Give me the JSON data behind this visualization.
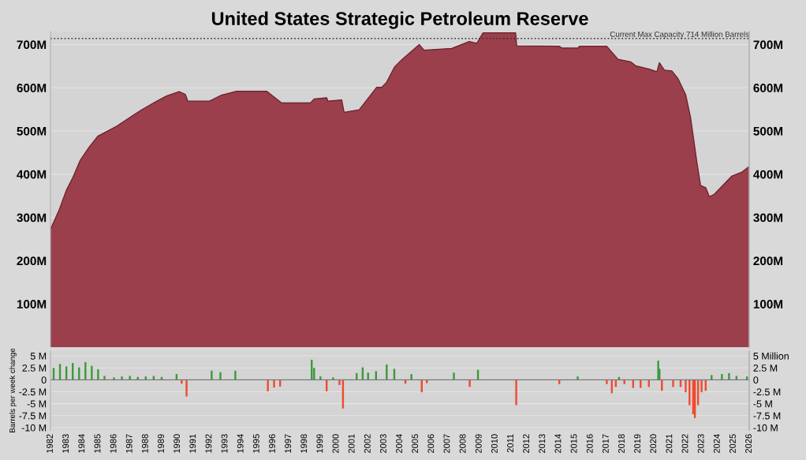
{
  "chart_data": [
    {
      "type": "area",
      "title": "United States Strategic Petroleum Reserve",
      "tick_labels": "y",
      "grid": "y",
      "x": [
        1982.0,
        1982.53,
        1983.0,
        1983.4,
        1983.88,
        1984.42,
        1984.98,
        1986.16,
        1987.1,
        1987.73,
        1988.68,
        1989.31,
        1990.1,
        1990.49,
        1990.65,
        1991.99,
        1992.77,
        1993.72,
        1995.61,
        1996.56,
        1998.37,
        1998.6,
        1999.39,
        1999.47,
        2000.34,
        2000.49,
        2001.44,
        2002.54,
        2002.86,
        2003.17,
        2003.66,
        2004.12,
        2005.22,
        2005.53,
        2007.27,
        2008.37,
        2008.84,
        2009.24,
        2011.29,
        2011.36,
        2014.04,
        2014.2,
        2015.22,
        2015.3,
        2017.03,
        2017.74,
        2018.53,
        2018.85,
        2019.71,
        2020.19,
        2020.34,
        2020.66,
        2021.13,
        2021.52,
        2022.0,
        2022.31,
        2022.71,
        2022.94,
        2023.26,
        2023.49,
        2023.81,
        2024.91,
        2025.54,
        2026.0
      ],
      "series": [
        {
          "color": "#9b3f4d",
          "values": [
            273,
            316,
            363,
            392,
            433,
            462,
            488,
            511,
            534,
            549,
            569,
            581,
            591,
            585,
            569,
            569,
            583,
            592,
            592,
            565,
            565,
            574,
            577,
            569,
            572,
            543,
            549,
            601,
            601,
            613,
            648,
            665,
            700,
            687,
            691,
            707,
            703,
            727,
            727,
            697,
            696,
            692,
            692,
            696,
            696,
            666,
            660,
            651,
            643,
            637,
            658,
            641,
            639,
            621,
            584,
            531,
            427,
            374,
            369,
            348,
            354,
            396,
            405,
            418
          ]
        }
      ],
      "xlim": [
        1982,
        2026
      ],
      "ylim": [
        0,
        730
      ],
      "yticks": [
        {
          "value": 100,
          "label": "100M"
        },
        {
          "value": 200,
          "label": "200M"
        },
        {
          "value": 300,
          "label": "300M"
        },
        {
          "value": 400,
          "label": "400M"
        },
        {
          "value": 500,
          "label": "500M"
        },
        {
          "value": 600,
          "label": "600M"
        },
        {
          "value": 700,
          "label": "700M"
        }
      ],
      "y2lim": [
        0,
        730
      ],
      "y2ticks": [
        {
          "value": 100,
          "label": "100M"
        },
        {
          "value": 200,
          "label": "200M"
        },
        {
          "value": 300,
          "label": "300M"
        },
        {
          "value": 400,
          "label": "400M"
        },
        {
          "value": 500,
          "label": "500M"
        },
        {
          "value": 600,
          "label": "600M"
        },
        {
          "value": 700,
          "label": "700M"
        }
      ],
      "ref_lines": [
        {
          "axis": "y",
          "value": 714,
          "label": "Current Max Capacity 714 Million Barrels",
          "color": "#333333",
          "line_style": "dotted"
        }
      ]
    },
    {
      "type": "bar",
      "ylabel": "Barrels per week change",
      "grid": "y",
      "series": [
        {
          "color": "#3a9a3a",
          "x": [
            1982.2,
            1982.6,
            1983.0,
            1983.4,
            1983.8,
            1984.2,
            1984.6,
            1985.0,
            1985.4,
            1986.0,
            1986.5,
            1987.0,
            1987.5,
            1988.0,
            1988.5,
            1989.0,
            1989.94,
            1992.15,
            1992.7,
            1993.64,
            1998.45,
            1998.6,
            1999.0,
            1999.8,
            2001.28,
            2001.66,
            2002.0,
            2002.5,
            2003.17,
            2003.65,
            2004.73,
            2007.4,
            2008.92,
            2015.2,
            2017.8,
            2020.27,
            2020.35,
            2023.63,
            2024.28,
            2024.73,
            2025.2,
            2025.86
          ],
          "values": [
            2.5,
            3.3,
            2.8,
            3.5,
            2.6,
            3.7,
            2.9,
            2.2,
            0.8,
            0.5,
            0.7,
            0.8,
            0.6,
            0.7,
            0.8,
            0.6,
            1.2,
            1.9,
            1.6,
            1.9,
            4.2,
            2.5,
            0.7,
            0.5,
            1.4,
            2.6,
            1.5,
            1.8,
            3.2,
            2.3,
            1.2,
            1.5,
            2.1,
            0.7,
            0.6,
            4.0,
            2.3,
            1.0,
            1.2,
            1.4,
            0.8,
            0.7
          ]
        },
        {
          "color": "#f04a30",
          "x": [
            1990.26,
            1990.57,
            1995.69,
            1996.08,
            1996.46,
            1999.39,
            2000.2,
            2000.42,
            2004.35,
            2005.38,
            2005.7,
            2008.4,
            2011.33,
            2014.04,
            2017.03,
            2017.35,
            2017.6,
            2018.14,
            2018.69,
            2019.16,
            2019.68,
            2020.5,
            2021.21,
            2021.68,
            2022.0,
            2022.24,
            2022.47,
            2022.58,
            2022.78,
            2023.0,
            2023.26
          ],
          "values": [
            -0.8,
            -3.5,
            -2.4,
            -1.6,
            -1.4,
            -2.4,
            -1.1,
            -6.0,
            -0.8,
            -2.6,
            -0.7,
            -1.5,
            -5.3,
            -0.9,
            -0.9,
            -2.8,
            -1.5,
            -0.9,
            -1.7,
            -1.7,
            -1.5,
            -2.3,
            -1.5,
            -1.5,
            -2.6,
            -5.3,
            -7.2,
            -8.0,
            -5.3,
            -2.6,
            -2.3
          ]
        }
      ],
      "xlim": [
        1982,
        2026
      ],
      "xticks": [
        1982,
        1983,
        1984,
        1985,
        1986,
        1987,
        1988,
        1989,
        1990,
        1991,
        1992,
        1993,
        1994,
        1995,
        1996,
        1997,
        1998,
        1999,
        2000,
        2001,
        2002,
        2003,
        2004,
        2005,
        2006,
        2007,
        2008,
        2009,
        2010,
        2011,
        2012,
        2013,
        2014,
        2015,
        2016,
        2017,
        2018,
        2019,
        2020,
        2021,
        2022,
        2023,
        2024,
        2025,
        2026
      ],
      "ylim": [
        -10.5,
        6
      ],
      "yticks": [
        {
          "value": -10,
          "label": "-10 M"
        },
        {
          "value": -7.5,
          "label": "-7.5 M"
        },
        {
          "value": -5,
          "label": "-5 M"
        },
        {
          "value": -2.5,
          "label": "-2.5 M"
        },
        {
          "value": 0,
          "label": "0"
        },
        {
          "value": 2.5,
          "label": "2.5 M"
        },
        {
          "value": 5,
          "label": "5 M"
        }
      ],
      "y2lim": [
        -10.5,
        6
      ],
      "y2ticks": [
        {
          "value": -10,
          "label": "-10 M"
        },
        {
          "value": -7.5,
          "label": "-7.5 M"
        },
        {
          "value": -5,
          "label": "-5 M"
        },
        {
          "value": -2.5,
          "label": "-2.5 M"
        },
        {
          "value": 0,
          "label": "0"
        },
        {
          "value": 2.5,
          "label": "2.5 M"
        },
        {
          "value": 5,
          "label": "5 Million"
        }
      ]
    }
  ]
}
